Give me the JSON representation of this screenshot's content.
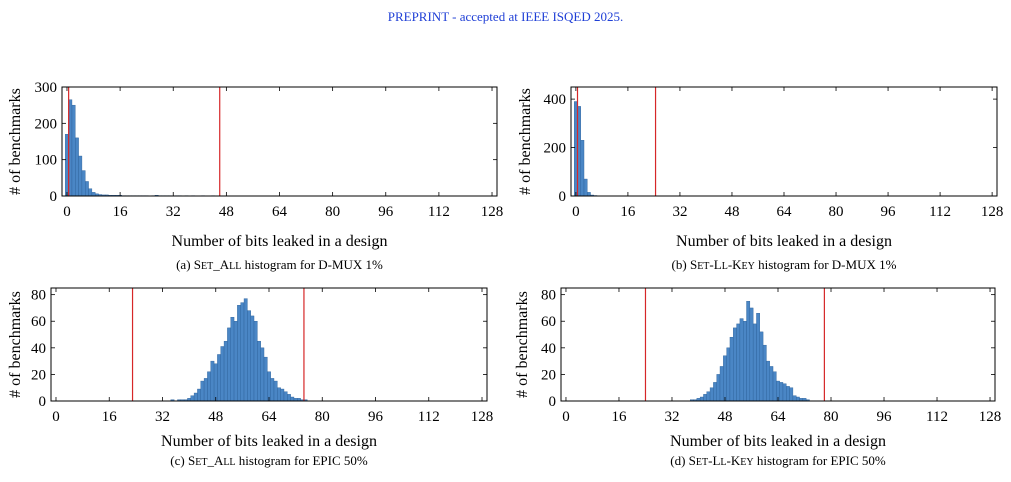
{
  "header": {
    "text": "PREPRINT - accepted at IEEE ISQED 2025."
  },
  "colors": {
    "bar": "#4a86c5",
    "bar_stroke": "#2a5f98",
    "threshold": "#d62728",
    "axis": "#000000"
  },
  "chart_data": [
    {
      "type": "bar",
      "caption": {
        "label": "(a) ",
        "name_big1": "S",
        "name_small1": "ET",
        "name_mid": "_",
        "name_big2": "A",
        "name_small2": "LL",
        "rest": " histogram for D-MUX 1%"
      },
      "xlabel": "Number of bits leaked in a design",
      "ylabel": "# of benchmarks",
      "xlim": [
        -1.5,
        129.5
      ],
      "ylim": [
        0,
        300
      ],
      "xticks": [
        0,
        16,
        32,
        48,
        64,
        80,
        96,
        112,
        128
      ],
      "yticks": [
        0,
        100,
        200,
        300
      ],
      "bins_start": 0,
      "values": [
        170,
        265,
        250,
        160,
        110,
        70,
        40,
        20,
        10,
        6,
        4,
        3,
        3,
        2,
        2,
        2,
        2,
        1,
        1,
        1,
        1,
        1,
        1,
        1,
        1,
        0,
        1,
        2,
        1,
        1,
        1,
        1,
        0,
        1,
        1,
        0,
        1,
        0,
        1,
        0,
        0,
        1,
        0,
        0,
        1,
        0,
        0,
        0,
        0,
        0,
        0,
        0,
        0,
        0,
        0,
        0,
        0,
        0,
        0,
        0,
        0,
        0,
        0,
        0,
        0,
        0,
        0,
        0,
        0,
        0,
        0,
        0,
        0,
        0,
        0,
        0,
        0,
        0,
        0,
        0,
        0,
        0,
        0,
        0,
        0,
        0,
        0,
        0,
        0,
        0,
        0,
        0,
        0,
        0,
        0,
        0,
        0,
        0,
        0,
        0,
        0,
        0,
        0,
        0,
        0,
        0,
        0,
        0,
        0,
        0,
        0,
        0,
        0,
        0,
        0,
        0,
        0,
        0,
        0,
        0,
        0,
        0,
        0,
        0,
        0,
        0,
        0,
        0,
        0
      ],
      "thresholds": [
        0.5,
        46
      ]
    },
    {
      "type": "bar",
      "caption": {
        "label": "(b) ",
        "name_big1": "S",
        "name_small1": "ET",
        "name_mid": "-",
        "name_big2": "L",
        "name_small2": "L",
        "rest": "-K",
        "name_small3": "EY",
        "rest2": " histogram for D-MUX 1%"
      },
      "xlabel": "Number of bits leaked in a design",
      "ylabel": "# of benchmarks",
      "xlim": [
        -1.5,
        129.5
      ],
      "ylim": [
        0,
        450
      ],
      "xticks": [
        0,
        16,
        32,
        48,
        64,
        80,
        96,
        112,
        128
      ],
      "yticks": [
        0,
        200,
        400
      ],
      "bins_start": 0,
      "values": [
        390,
        370,
        230,
        70,
        15,
        4,
        2,
        1,
        1,
        0,
        1,
        0,
        0,
        1,
        0,
        0,
        0,
        0,
        0,
        0,
        0,
        0,
        0,
        0,
        0,
        0,
        0,
        0,
        0,
        0,
        0,
        0,
        0,
        0,
        0,
        0,
        0,
        0,
        0,
        0,
        0,
        0,
        0,
        0,
        0,
        0,
        0,
        0,
        0,
        0,
        0,
        0,
        0,
        0,
        0,
        0,
        0,
        0,
        0,
        0,
        0,
        0,
        0,
        0,
        0,
        0,
        0,
        0,
        0,
        0,
        0,
        0,
        0,
        0,
        0,
        0,
        0,
        0,
        0,
        0,
        0,
        0,
        0,
        0,
        0,
        0,
        0,
        0,
        0,
        0,
        0,
        0,
        0,
        0,
        0,
        0,
        0,
        0,
        0,
        0,
        0,
        0,
        0,
        0,
        0,
        0,
        0,
        0,
        0,
        0,
        0,
        0,
        0,
        0,
        0,
        0,
        0,
        0,
        0,
        0,
        0,
        0,
        0,
        0,
        0,
        0,
        0,
        0,
        0
      ],
      "thresholds": [
        0.5,
        24.5
      ]
    },
    {
      "type": "bar",
      "caption": {
        "label": "(c) ",
        "name_big1": "S",
        "name_small1": "ET",
        "name_mid": "_",
        "name_big2": "A",
        "name_small2": "LL",
        "rest": " histogram for EPIC 50%"
      },
      "xlabel": "Number of bits leaked in a design",
      "ylabel": "# of benchmarks",
      "xlim": [
        -1.5,
        129.5
      ],
      "ylim": [
        0,
        85
      ],
      "xticks": [
        0,
        16,
        32,
        48,
        64,
        80,
        96,
        112,
        128
      ],
      "yticks": [
        0,
        20,
        40,
        60,
        80
      ],
      "bins_start": 35,
      "values": [
        1,
        0,
        1,
        1,
        1,
        2,
        4,
        6,
        9,
        15,
        17,
        22,
        30,
        28,
        35,
        41,
        45,
        55,
        63,
        60,
        72,
        74,
        77,
        68,
        64,
        60,
        45,
        40,
        33,
        22,
        17,
        15,
        10,
        9,
        7,
        5,
        3,
        2,
        2,
        1,
        1
      ],
      "thresholds": [
        23,
        74.5
      ]
    },
    {
      "type": "bar",
      "caption": {
        "label": "(d) ",
        "name_big1": "S",
        "name_small1": "ET",
        "name_mid": "-",
        "name_big2": "L",
        "name_small2": "L",
        "rest": "-K",
        "name_small3": "EY",
        "rest2": " histogram for EPIC 50%"
      },
      "xlabel": "Number of bits leaked in a design",
      "ylabel": "# of benchmarks",
      "xlim": [
        -1.5,
        129.5
      ],
      "ylim": [
        0,
        85
      ],
      "xticks": [
        0,
        16,
        32,
        48,
        64,
        80,
        96,
        112,
        128
      ],
      "yticks": [
        0,
        20,
        40,
        60,
        80
      ],
      "bins_start": 38,
      "values": [
        1,
        1,
        2,
        3,
        5,
        7,
        10,
        14,
        20,
        26,
        34,
        40,
        48,
        55,
        58,
        62,
        60,
        75,
        70,
        58,
        66,
        52,
        42,
        30,
        26,
        22,
        15,
        14,
        13,
        11,
        10,
        4,
        3,
        2,
        2,
        1
      ],
      "thresholds": [
        24,
        78
      ]
    }
  ]
}
